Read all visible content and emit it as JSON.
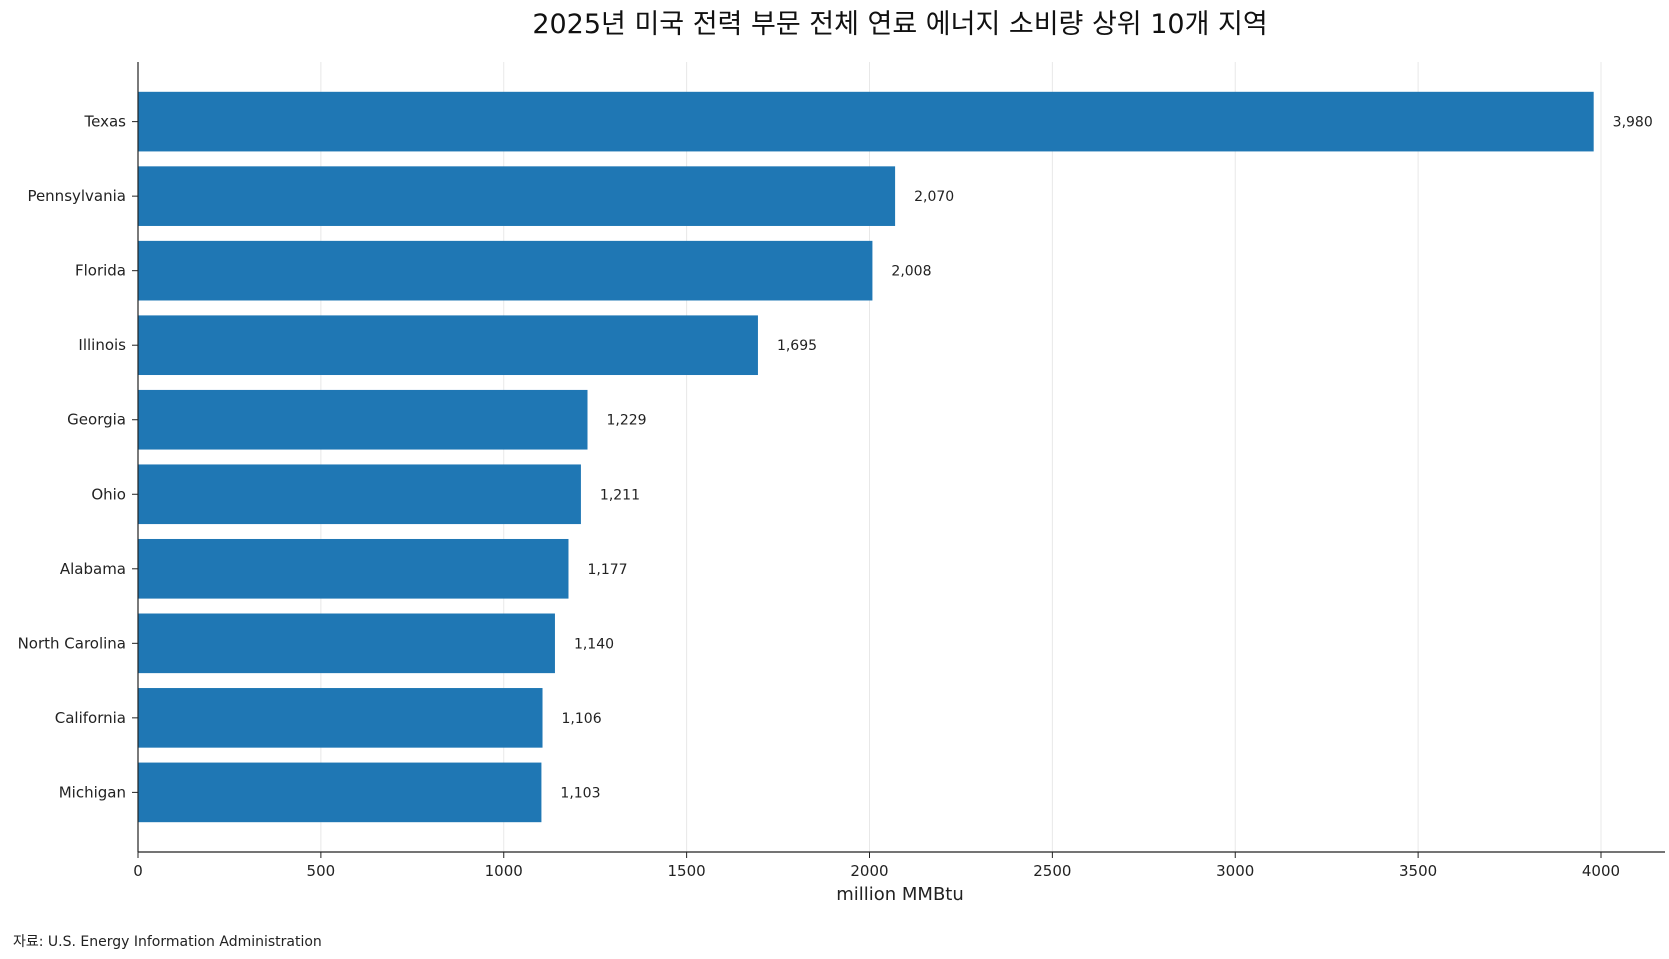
{
  "chart_data": {
    "type": "bar",
    "orientation": "horizontal",
    "title": "2025년 미국 전력 부문 전체 연료 에너지 소비량 상위 10개 지역",
    "xlabel": "million MMBtu",
    "ylabel": "",
    "xlim": [
      0,
      4175
    ],
    "x_ticks": [
      0,
      500,
      1000,
      1500,
      2000,
      2500,
      3000,
      3500,
      4000
    ],
    "grid": "vertical",
    "bar_color": "#1f77b4",
    "categories": [
      "Texas",
      "Pennsylvania",
      "Florida",
      "Illinois",
      "Georgia",
      "Ohio",
      "Alabama",
      "North Carolina",
      "California",
      "Michigan"
    ],
    "values": [
      3980,
      2070,
      2008,
      1695,
      1229,
      1211,
      1177,
      1140,
      1106,
      1103
    ],
    "value_labels": [
      "3,980",
      "2,070",
      "2,008",
      "1,695",
      "1,229",
      "1,211",
      "1,177",
      "1,140",
      "1,106",
      "1,103"
    ],
    "source": "자료: U.S. Energy Information Administration"
  }
}
